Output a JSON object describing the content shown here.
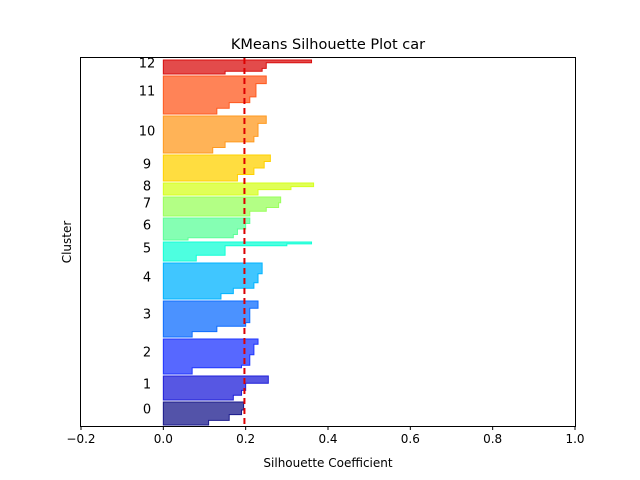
{
  "chart_data": {
    "type": "silhouette",
    "title": "KMeans Silhouette Plot car",
    "xlabel": "Silhouette Coefficient",
    "ylabel": "Cluster",
    "xlim": [
      -0.2,
      1.0
    ],
    "xticks": [
      "−0.2",
      "0.0",
      "0.2",
      "0.4",
      "0.6",
      "0.8",
      "1.0"
    ],
    "xtick_values": [
      -0.2,
      0.0,
      0.2,
      0.4,
      0.6,
      0.8,
      1.0
    ],
    "grid": false,
    "average_silhouette": 0.197,
    "average_line_color": "#dd0000",
    "clusters": [
      {
        "label": "0",
        "color": "#1a1a8c",
        "profile": [
          [
            0,
            0.195
          ],
          [
            0.35,
            0.19
          ],
          [
            0.55,
            0.16
          ],
          [
            0.8,
            0.11
          ],
          [
            1,
            0.07
          ]
        ]
      },
      {
        "label": "1",
        "color": "#1f1fd9",
        "profile": [
          [
            0,
            0.255
          ],
          [
            0.3,
            0.2
          ],
          [
            0.6,
            0.19
          ],
          [
            0.8,
            0.17
          ],
          [
            1,
            0.08
          ]
        ]
      },
      {
        "label": "2",
        "color": "#1f35ff",
        "profile": [
          [
            0,
            0.23
          ],
          [
            0.15,
            0.22
          ],
          [
            0.45,
            0.21
          ],
          [
            0.75,
            0.19
          ],
          [
            0.82,
            0.07
          ],
          [
            1,
            0.07
          ]
        ]
      },
      {
        "label": "3",
        "color": "#0f6dff",
        "profile": [
          [
            0,
            0.23
          ],
          [
            0.2,
            0.21
          ],
          [
            0.6,
            0.2
          ],
          [
            0.7,
            0.13
          ],
          [
            0.85,
            0.07
          ],
          [
            1,
            0.07
          ]
        ]
      },
      {
        "label": "4",
        "color": "#00b3ff",
        "profile": [
          [
            0,
            0.24
          ],
          [
            0.3,
            0.23
          ],
          [
            0.55,
            0.22
          ],
          [
            0.7,
            0.17
          ],
          [
            0.85,
            0.14
          ],
          [
            1,
            0.14
          ]
        ]
      },
      {
        "label": "5",
        "color": "#12ffd6",
        "profile": [
          [
            0,
            0.36
          ],
          [
            0.1,
            0.3
          ],
          [
            0.2,
            0.15
          ],
          [
            0.55,
            0.15
          ],
          [
            0.7,
            0.08
          ],
          [
            1,
            0.06
          ]
        ]
      },
      {
        "label": "6",
        "color": "#5cff99",
        "profile": [
          [
            0,
            0.21
          ],
          [
            0.25,
            0.2
          ],
          [
            0.5,
            0.18
          ],
          [
            0.75,
            0.17
          ],
          [
            0.9,
            0.06
          ],
          [
            1,
            0.06
          ]
        ]
      },
      {
        "label": "7",
        "color": "#99ff5c",
        "profile": [
          [
            0,
            0.285
          ],
          [
            0.3,
            0.28
          ],
          [
            0.55,
            0.25
          ],
          [
            0.75,
            0.21
          ],
          [
            1,
            0.2
          ]
        ]
      },
      {
        "label": "8",
        "color": "#d6ff1f",
        "profile": [
          [
            0,
            0.365
          ],
          [
            0.3,
            0.31
          ],
          [
            0.55,
            0.23
          ],
          [
            1,
            0.15
          ]
        ]
      },
      {
        "label": "9",
        "color": "#ffd100",
        "profile": [
          [
            0,
            0.26
          ],
          [
            0.25,
            0.245
          ],
          [
            0.5,
            0.22
          ],
          [
            0.75,
            0.18
          ],
          [
            1,
            0.16
          ]
        ]
      },
      {
        "label": "10",
        "color": "#ff9a1f",
        "profile": [
          [
            0,
            0.25
          ],
          [
            0.2,
            0.23
          ],
          [
            0.55,
            0.22
          ],
          [
            0.7,
            0.15
          ],
          [
            0.85,
            0.12
          ],
          [
            1,
            0.11
          ]
        ]
      },
      {
        "label": "11",
        "color": "#ff5a1f",
        "profile": [
          [
            0,
            0.25
          ],
          [
            0.2,
            0.225
          ],
          [
            0.55,
            0.21
          ],
          [
            0.7,
            0.16
          ],
          [
            0.85,
            0.13
          ],
          [
            1,
            0.11
          ]
        ]
      },
      {
        "label": "12",
        "color": "#d90f0f",
        "profile": [
          [
            0,
            0.36
          ],
          [
            0.2,
            0.25
          ],
          [
            0.6,
            0.24
          ],
          [
            0.8,
            0.15
          ],
          [
            1,
            0.13
          ]
        ]
      }
    ]
  }
}
